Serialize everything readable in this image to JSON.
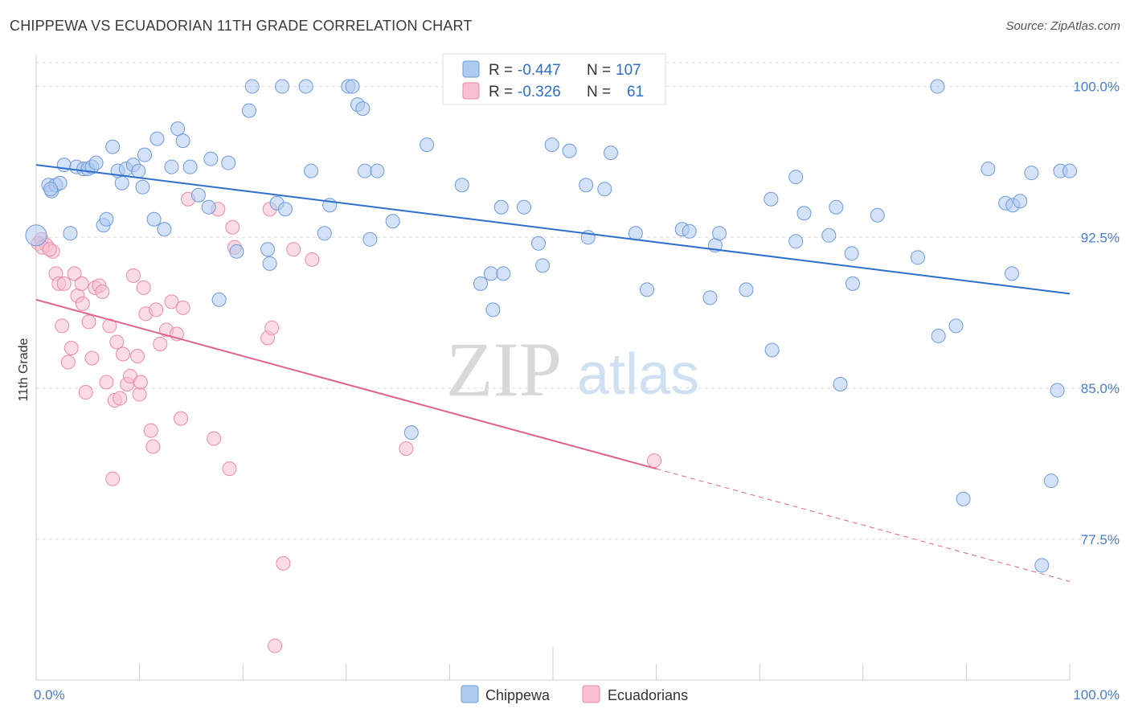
{
  "title": "CHIPPEWA VS ECUADORIAN 11TH GRADE CORRELATION CHART",
  "source": "Source: ZipAtlas.com",
  "watermark": {
    "zip": "ZIP",
    "atlas": "atlas"
  },
  "colors": {
    "chippewa_fill": "#aecbf0",
    "chippewa_stroke": "#6f9ad8",
    "chippewa_line": "#2f6fcc",
    "ecuadorian_fill": "#f7bfd0",
    "ecuadorian_stroke": "#ea8aa8",
    "ecuadorian_line": "#e0628f",
    "tick_text": "#4a7cc9",
    "grid": "#dddddd"
  },
  "legend": {
    "rows": [
      {
        "r_label": "R =",
        "r_value": "-0.447",
        "n_label": "N =",
        "n_value": "107"
      },
      {
        "r_label": "R =",
        "r_value": "-0.326",
        "n_label": "N =",
        "n_value": "61"
      }
    ]
  },
  "chart_data": {
    "type": "scatter",
    "ylabel": "11th Grade",
    "xlim": [
      0,
      100
    ],
    "ylim": [
      70.5,
      101.5
    ],
    "x_tick_labels": [
      "0.0%",
      "100.0%"
    ],
    "y_ticks": [
      {
        "value": 100.0,
        "label": "100.0%"
      },
      {
        "value": 92.5,
        "label": "92.5%"
      },
      {
        "value": 85.0,
        "label": "85.0%"
      },
      {
        "value": 77.5,
        "label": "77.5%"
      }
    ],
    "grid": true,
    "legend_position": "top-center",
    "series": [
      {
        "name": "Chippewa",
        "r": -0.447,
        "n": 107,
        "trend": {
          "x": [
            0,
            100
          ],
          "y": [
            96.1,
            89.7
          ]
        },
        "points": [
          [
            0.0,
            92.6
          ],
          [
            1.2,
            95.1
          ],
          [
            1.5,
            94.8
          ],
          [
            1.9,
            95.1
          ],
          [
            2.3,
            95.2
          ],
          [
            2.7,
            96.1
          ],
          [
            3.3,
            92.7
          ],
          [
            3.9,
            96.0
          ],
          [
            4.6,
            95.9
          ],
          [
            5.0,
            95.9
          ],
          [
            5.4,
            96.0
          ],
          [
            5.8,
            96.2
          ],
          [
            6.5,
            93.1
          ],
          [
            6.8,
            93.4
          ],
          [
            7.4,
            97.0
          ],
          [
            7.9,
            95.8
          ],
          [
            8.3,
            95.2
          ],
          [
            8.7,
            95.9
          ],
          [
            9.4,
            96.1
          ],
          [
            9.9,
            95.8
          ],
          [
            10.3,
            95.0
          ],
          [
            10.5,
            96.6
          ],
          [
            11.4,
            93.4
          ],
          [
            11.7,
            97.4
          ],
          [
            12.4,
            92.9
          ],
          [
            13.1,
            96.0
          ],
          [
            13.7,
            97.9
          ],
          [
            14.2,
            97.3
          ],
          [
            14.9,
            96.0
          ],
          [
            15.7,
            94.6
          ],
          [
            16.7,
            94.0
          ],
          [
            16.9,
            96.4
          ],
          [
            17.7,
            89.4
          ],
          [
            18.6,
            96.2
          ],
          [
            19.4,
            91.8
          ],
          [
            20.6,
            98.8
          ],
          [
            20.9,
            100.0
          ],
          [
            22.4,
            91.9
          ],
          [
            22.6,
            91.2
          ],
          [
            23.3,
            94.2
          ],
          [
            23.8,
            100.0
          ],
          [
            24.1,
            93.9
          ],
          [
            26.1,
            100.0
          ],
          [
            26.6,
            95.8
          ],
          [
            27.9,
            92.7
          ],
          [
            28.4,
            94.1
          ],
          [
            30.2,
            100.0
          ],
          [
            30.6,
            100.0
          ],
          [
            31.1,
            99.1
          ],
          [
            31.6,
            98.9
          ],
          [
            31.8,
            95.8
          ],
          [
            32.3,
            92.4
          ],
          [
            33.0,
            95.8
          ],
          [
            34.5,
            93.3
          ],
          [
            36.3,
            82.8
          ],
          [
            37.8,
            97.1
          ],
          [
            41.2,
            95.1
          ],
          [
            43.0,
            90.2
          ],
          [
            44.0,
            90.7
          ],
          [
            44.2,
            88.9
          ],
          [
            45.0,
            94.0
          ],
          [
            45.2,
            90.7
          ],
          [
            47.2,
            94.0
          ],
          [
            48.6,
            92.2
          ],
          [
            49.0,
            91.1
          ],
          [
            49.9,
            97.1
          ],
          [
            51.6,
            96.8
          ],
          [
            53.2,
            95.1
          ],
          [
            53.4,
            92.5
          ],
          [
            55.0,
            94.9
          ],
          [
            55.6,
            96.7
          ],
          [
            58.0,
            92.7
          ],
          [
            59.1,
            89.9
          ],
          [
            62.5,
            92.9
          ],
          [
            63.2,
            92.8
          ],
          [
            65.2,
            89.5
          ],
          [
            65.7,
            92.1
          ],
          [
            66.1,
            92.7
          ],
          [
            68.7,
            89.9
          ],
          [
            71.1,
            94.4
          ],
          [
            73.5,
            95.5
          ],
          [
            71.2,
            86.9
          ],
          [
            73.5,
            92.3
          ],
          [
            74.3,
            93.7
          ],
          [
            76.7,
            92.6
          ],
          [
            77.4,
            94.0
          ],
          [
            77.8,
            85.2
          ],
          [
            78.9,
            91.7
          ],
          [
            79.0,
            90.2
          ],
          [
            81.4,
            93.6
          ],
          [
            85.3,
            91.5
          ],
          [
            87.2,
            100.0
          ],
          [
            87.3,
            87.6
          ],
          [
            89.0,
            88.1
          ],
          [
            89.7,
            79.5
          ],
          [
            92.1,
            95.9
          ],
          [
            93.8,
            94.2
          ],
          [
            94.4,
            90.7
          ],
          [
            94.5,
            94.1
          ],
          [
            95.2,
            94.3
          ],
          [
            96.3,
            95.7
          ],
          [
            97.3,
            76.2
          ],
          [
            98.2,
            80.4
          ],
          [
            98.8,
            84.9
          ],
          [
            99.1,
            95.8
          ],
          [
            100.0,
            95.8
          ],
          [
            1.4,
            94.9
          ]
        ]
      },
      {
        "name": "Ecuadorians",
        "r": -0.326,
        "n": 61,
        "trend": {
          "x": [
            0,
            60
          ],
          "y": [
            89.4,
            81.0
          ]
        },
        "trend_dashed": {
          "x": [
            60,
            100
          ],
          "y": [
            81.0,
            75.4
          ]
        },
        "points": [
          [
            0.2,
            92.2
          ],
          [
            0.5,
            92.4
          ],
          [
            1.0,
            92.1
          ],
          [
            1.6,
            91.8
          ],
          [
            1.9,
            90.7
          ],
          [
            2.2,
            90.2
          ],
          [
            2.5,
            88.1
          ],
          [
            2.7,
            90.2
          ],
          [
            3.1,
            86.3
          ],
          [
            3.4,
            87.0
          ],
          [
            3.7,
            90.7
          ],
          [
            4.0,
            89.6
          ],
          [
            4.4,
            90.2
          ],
          [
            4.5,
            89.2
          ],
          [
            4.8,
            84.8
          ],
          [
            5.1,
            88.3
          ],
          [
            5.4,
            86.5
          ],
          [
            5.7,
            90.0
          ],
          [
            6.1,
            90.1
          ],
          [
            6.4,
            89.8
          ],
          [
            6.8,
            85.3
          ],
          [
            7.1,
            88.1
          ],
          [
            7.4,
            80.5
          ],
          [
            7.6,
            84.4
          ],
          [
            7.8,
            87.3
          ],
          [
            8.1,
            84.5
          ],
          [
            8.4,
            86.7
          ],
          [
            8.8,
            85.2
          ],
          [
            9.1,
            85.6
          ],
          [
            9.4,
            90.6
          ],
          [
            9.8,
            86.6
          ],
          [
            10.0,
            84.7
          ],
          [
            10.1,
            85.3
          ],
          [
            10.4,
            90.0
          ],
          [
            10.6,
            88.7
          ],
          [
            11.1,
            82.9
          ],
          [
            11.3,
            82.1
          ],
          [
            11.6,
            88.9
          ],
          [
            12.0,
            87.2
          ],
          [
            12.6,
            87.9
          ],
          [
            13.1,
            89.3
          ],
          [
            13.6,
            87.7
          ],
          [
            14.0,
            83.5
          ],
          [
            14.2,
            89.0
          ],
          [
            14.7,
            94.4
          ],
          [
            17.2,
            82.5
          ],
          [
            17.6,
            93.9
          ],
          [
            18.7,
            81.0
          ],
          [
            19.0,
            93.0
          ],
          [
            19.2,
            92.0
          ],
          [
            22.4,
            87.5
          ],
          [
            22.6,
            93.9
          ],
          [
            22.8,
            88.0
          ],
          [
            23.1,
            72.2
          ],
          [
            23.9,
            76.3
          ],
          [
            24.9,
            91.9
          ],
          [
            26.7,
            91.4
          ],
          [
            35.8,
            82.0
          ],
          [
            59.8,
            81.4
          ],
          [
            0.6,
            92.0
          ],
          [
            1.3,
            91.9
          ]
        ]
      }
    ]
  }
}
